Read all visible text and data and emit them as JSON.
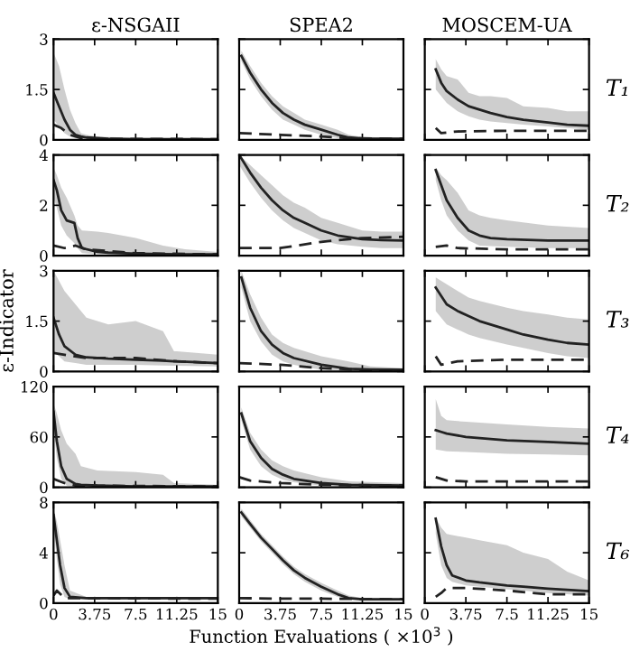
{
  "chart_data": [
    {
      "type": "line",
      "title": "ε-NSGAII",
      "xlim": [
        0,
        15
      ],
      "xticks": [
        0,
        3.75,
        7.5,
        11.25,
        15
      ],
      "ylim": [
        0,
        3
      ],
      "yticks": [
        0,
        1.5,
        3
      ],
      "tick_labels": "y",
      "series": [
        {
          "color": "#222222",
          "x": [
            0,
            0.5,
            1,
            1.5,
            2,
            2.5,
            3,
            4,
            5,
            7.5,
            11.25,
            15
          ],
          "values": [
            1.4,
            1.0,
            0.6,
            0.3,
            0.15,
            0.1,
            0.07,
            0.05,
            0.03,
            0.02,
            0.02,
            0.02
          ],
          "upper": [
            2.6,
            2.2,
            1.5,
            0.9,
            0.5,
            0.2,
            0.15,
            0.1,
            0.08,
            0.06,
            0.05,
            0.05
          ],
          "lower": [
            0.6,
            0.4,
            0.2,
            0.1,
            0.05,
            0.02,
            0.01,
            0,
            0,
            0,
            0,
            0
          ]
        },
        {
          "color": "#222222",
          "line_style": "dashed",
          "x": [
            0,
            0.7,
            1.5,
            2.5,
            5,
            15
          ],
          "values": [
            0.45,
            0.35,
            0.15,
            0.05,
            0.03,
            0.02
          ]
        }
      ]
    },
    {
      "type": "line",
      "title": "SPEA2",
      "xlim": [
        0,
        15
      ],
      "xticks": [
        0,
        3.75,
        7.5,
        11.25,
        15
      ],
      "ylim": [
        0,
        3
      ],
      "yticks": [
        0,
        1.5,
        3
      ],
      "tick_labels": false,
      "series": [
        {
          "color": "#222222",
          "x": [
            0.2,
            1,
            2,
            3,
            4,
            5,
            6,
            7.5,
            9,
            10,
            11.25,
            15
          ],
          "values": [
            2.5,
            2.0,
            1.5,
            1.1,
            0.8,
            0.6,
            0.45,
            0.3,
            0.15,
            0.07,
            0.04,
            0.03
          ],
          "upper": [
            2.65,
            2.2,
            1.7,
            1.3,
            1.0,
            0.8,
            0.6,
            0.45,
            0.3,
            0.15,
            0.08,
            0.06
          ],
          "lower": [
            2.35,
            1.8,
            1.3,
            0.9,
            0.6,
            0.45,
            0.3,
            0.15,
            0.05,
            0.02,
            0.01,
            0.01
          ]
        },
        {
          "color": "#222222",
          "line_style": "dashed",
          "x": [
            0,
            3.75,
            7.5,
            10,
            15
          ],
          "values": [
            0.2,
            0.15,
            0.1,
            0.05,
            0.03
          ]
        }
      ]
    },
    {
      "type": "line",
      "title": "MOSCEM-UA",
      "annotations": [
        "T₁"
      ],
      "xlim": [
        0,
        15
      ],
      "xticks": [
        0,
        3.75,
        7.5,
        11.25,
        15
      ],
      "ylim": [
        0,
        3
      ],
      "yticks": [
        0,
        1.5,
        3
      ],
      "tick_labels": false,
      "series": [
        {
          "color": "#222222",
          "x": [
            1,
            1.5,
            2,
            3,
            4,
            5,
            6,
            7.5,
            9,
            11.25,
            13,
            15
          ],
          "values": [
            2.1,
            1.7,
            1.45,
            1.2,
            1.0,
            0.9,
            0.8,
            0.68,
            0.6,
            0.52,
            0.45,
            0.42
          ],
          "upper": [
            2.4,
            2.1,
            1.9,
            1.8,
            1.4,
            1.3,
            1.3,
            1.25,
            1.0,
            0.95,
            0.85,
            0.85
          ],
          "lower": [
            1.5,
            1.3,
            1.1,
            0.85,
            0.7,
            0.6,
            0.55,
            0.5,
            0.45,
            0.4,
            0.35,
            0.3
          ]
        },
        {
          "color": "#222222",
          "line_style": "dashed",
          "x": [
            1,
            1.5,
            3,
            7.5,
            15
          ],
          "values": [
            0.35,
            0.2,
            0.25,
            0.27,
            0.27
          ]
        }
      ]
    },
    {
      "type": "line",
      "xlim": [
        0,
        15
      ],
      "xticks": [
        0,
        3.75,
        7.5,
        11.25,
        15
      ],
      "ylim": [
        0,
        4
      ],
      "yticks": [
        0,
        2,
        4
      ],
      "tick_labels": "y",
      "series": [
        {
          "color": "#222222",
          "x": [
            0,
            0.3,
            0.7,
            1.2,
            1.9,
            2.2,
            2.6,
            4,
            5,
            7.5,
            10,
            12,
            15
          ],
          "values": [
            3.0,
            2.6,
            1.8,
            1.4,
            1.3,
            0.7,
            0.3,
            0.15,
            0.12,
            0.08,
            0.06,
            0.05,
            0.05
          ],
          "upper": [
            3.5,
            3.2,
            2.7,
            2.3,
            1.6,
            1.2,
            1.0,
            0.95,
            0.9,
            0.7,
            0.4,
            0.25,
            0.15
          ],
          "lower": [
            2.3,
            1.9,
            1.2,
            0.8,
            0.5,
            0.3,
            0.1,
            0.05,
            0.02,
            0,
            0,
            0,
            0
          ]
        },
        {
          "color": "#222222",
          "line_style": "dashed",
          "x": [
            0,
            1,
            2,
            3,
            7.5,
            15
          ],
          "values": [
            0.4,
            0.3,
            0.4,
            0.25,
            0.1,
            0.05
          ]
        }
      ]
    },
    {
      "type": "line",
      "xlim": [
        0,
        15
      ],
      "xticks": [
        0,
        3.75,
        7.5,
        11.25,
        15
      ],
      "ylim": [
        0,
        4
      ],
      "yticks": [
        0,
        2,
        4
      ],
      "tick_labels": false,
      "series": [
        {
          "color": "#222222",
          "x": [
            0,
            1,
            2,
            3,
            4,
            5,
            6,
            7.5,
            9,
            11.25,
            13,
            15
          ],
          "values": [
            4.0,
            3.3,
            2.7,
            2.2,
            1.8,
            1.5,
            1.3,
            1.0,
            0.8,
            0.65,
            0.62,
            0.6
          ],
          "upper": [
            4.0,
            3.6,
            3.2,
            2.8,
            2.4,
            2.1,
            1.9,
            1.5,
            1.3,
            1.0,
            0.95,
            0.95
          ],
          "lower": [
            3.6,
            2.9,
            2.3,
            1.8,
            1.4,
            1.1,
            0.9,
            0.6,
            0.45,
            0.35,
            0.3,
            0.3
          ]
        },
        {
          "color": "#222222",
          "line_style": "dashed",
          "x": [
            0,
            3.75,
            7.5,
            11.25,
            15
          ],
          "values": [
            0.3,
            0.3,
            0.55,
            0.7,
            0.75
          ]
        }
      ]
    },
    {
      "type": "line",
      "annotations": [
        "T₂"
      ],
      "xlim": [
        0,
        15
      ],
      "xticks": [
        0,
        3.75,
        7.5,
        11.25,
        15
      ],
      "ylim": [
        0,
        4
      ],
      "yticks": [
        0,
        2,
        4
      ],
      "tick_labels": false,
      "series": [
        {
          "color": "#222222",
          "x": [
            1,
            1.5,
            2,
            3,
            4,
            5,
            6,
            7.5,
            11.25,
            15
          ],
          "values": [
            3.4,
            2.8,
            2.2,
            1.5,
            1.0,
            0.8,
            0.7,
            0.65,
            0.6,
            0.6
          ],
          "upper": [
            3.5,
            3.2,
            3.0,
            2.5,
            1.8,
            1.6,
            1.5,
            1.4,
            1.2,
            1.1
          ],
          "lower": [
            3.0,
            2.2,
            1.6,
            1.0,
            0.6,
            0.4,
            0.38,
            0.35,
            0.3,
            0.3
          ]
        },
        {
          "color": "#222222",
          "line_style": "dashed",
          "x": [
            1,
            2,
            3,
            7.5,
            15
          ],
          "values": [
            0.35,
            0.4,
            0.3,
            0.25,
            0.25
          ]
        }
      ]
    },
    {
      "type": "line",
      "ylabel": "ε-Indicator",
      "xlim": [
        0,
        15
      ],
      "xticks": [
        0,
        3.75,
        7.5,
        11.25,
        15
      ],
      "ylim": [
        0,
        3
      ],
      "yticks": [
        0,
        1.5,
        3
      ],
      "tick_labels": "y",
      "series": [
        {
          "color": "#222222",
          "x": [
            0,
            0.5,
            1,
            2,
            3,
            5,
            7.5,
            10,
            11,
            11.25,
            15
          ],
          "values": [
            1.6,
            1.1,
            0.75,
            0.5,
            0.42,
            0.38,
            0.35,
            0.32,
            0.3,
            0.3,
            0.25
          ],
          "upper": [
            3.0,
            2.7,
            2.4,
            2.0,
            1.6,
            1.4,
            1.5,
            1.2,
            0.6,
            0.6,
            0.5
          ],
          "lower": [
            0.6,
            0.45,
            0.3,
            0.25,
            0.2,
            0.2,
            0.2,
            0.18,
            0.17,
            0.17,
            0.15
          ]
        },
        {
          "color": "#222222",
          "line_style": "dashed",
          "x": [
            0,
            1,
            3,
            7.5,
            11.25,
            15
          ],
          "values": [
            0.55,
            0.5,
            0.4,
            0.4,
            0.3,
            0.25
          ]
        }
      ]
    },
    {
      "type": "line",
      "xlim": [
        0,
        15
      ],
      "xticks": [
        0,
        3.75,
        7.5,
        11.25,
        15
      ],
      "ylim": [
        0,
        3
      ],
      "yticks": [
        0,
        1.5,
        3
      ],
      "tick_labels": false,
      "series": [
        {
          "color": "#222222",
          "x": [
            0.2,
            1,
            2,
            3,
            4,
            5,
            7.5,
            10,
            12,
            15
          ],
          "values": [
            2.8,
            1.9,
            1.2,
            0.8,
            0.55,
            0.4,
            0.2,
            0.08,
            0.06,
            0.05
          ],
          "upper": [
            3.0,
            2.3,
            1.6,
            1.1,
            0.85,
            0.7,
            0.45,
            0.3,
            0.15,
            0.1
          ],
          "lower": [
            2.5,
            1.5,
            0.9,
            0.5,
            0.3,
            0.2,
            0.05,
            0,
            0,
            0
          ]
        },
        {
          "color": "#222222",
          "line_style": "dashed",
          "x": [
            0,
            3.75,
            7.5,
            11.25,
            15
          ],
          "values": [
            0.25,
            0.2,
            0.1,
            0.05,
            0.03
          ]
        }
      ]
    },
    {
      "type": "line",
      "annotations": [
        "T₃"
      ],
      "xlim": [
        0,
        15
      ],
      "xticks": [
        0,
        3.75,
        7.5,
        11.25,
        15
      ],
      "ylim": [
        0,
        3
      ],
      "yticks": [
        0,
        1.5,
        3
      ],
      "tick_labels": false,
      "series": [
        {
          "color": "#222222",
          "x": [
            1,
            2,
            3,
            4,
            5,
            7.5,
            9,
            11.25,
            13,
            15
          ],
          "values": [
            2.5,
            2.0,
            1.8,
            1.65,
            1.5,
            1.25,
            1.1,
            0.95,
            0.85,
            0.8
          ],
          "upper": [
            2.8,
            2.6,
            2.4,
            2.2,
            2.1,
            1.9,
            1.8,
            1.7,
            1.6,
            1.55
          ],
          "lower": [
            1.8,
            1.4,
            1.25,
            1.1,
            1.0,
            0.8,
            0.7,
            0.55,
            0.45,
            0.4
          ]
        },
        {
          "color": "#222222",
          "line_style": "dashed",
          "x": [
            1,
            1.5,
            3,
            7.5,
            15
          ],
          "values": [
            0.45,
            0.2,
            0.3,
            0.35,
            0.35
          ]
        }
      ]
    },
    {
      "type": "line",
      "xlim": [
        0,
        15
      ],
      "xticks": [
        0,
        3.75,
        7.5,
        11.25,
        15
      ],
      "ylim": [
        0,
        120
      ],
      "yticks": [
        0,
        60,
        120
      ],
      "tick_labels": "y",
      "series": [
        {
          "color": "#222222",
          "x": [
            0,
            0.3,
            0.7,
            1.2,
            2,
            2.5,
            4,
            7.5,
            10,
            11,
            15
          ],
          "values": [
            90,
            55,
            25,
            10,
            4,
            3,
            2,
            1,
            1,
            1,
            1
          ],
          "upper": [
            100,
            88,
            68,
            52,
            40,
            25,
            20,
            18,
            15,
            5,
            3
          ],
          "lower": [
            70,
            35,
            10,
            2,
            0,
            0,
            0,
            0,
            0,
            0,
            0
          ]
        },
        {
          "color": "#222222",
          "line_style": "dashed",
          "x": [
            0,
            1,
            2,
            15
          ],
          "values": [
            10,
            5,
            2,
            1
          ]
        }
      ]
    },
    {
      "type": "line",
      "xlim": [
        0,
        15
      ],
      "xticks": [
        0,
        3.75,
        7.5,
        11.25,
        15
      ],
      "ylim": [
        0,
        120
      ],
      "yticks": [
        0,
        60,
        120
      ],
      "tick_labels": false,
      "series": [
        {
          "color": "#222222",
          "x": [
            0.2,
            1,
            2,
            3,
            4,
            5,
            7.5,
            10,
            15
          ],
          "values": [
            88,
            55,
            35,
            22,
            15,
            10,
            5,
            3,
            2
          ],
          "upper": [
            95,
            65,
            45,
            32,
            25,
            20,
            12,
            7,
            5
          ],
          "lower": [
            80,
            45,
            25,
            15,
            9,
            6,
            2,
            0,
            0
          ]
        },
        {
          "color": "#222222",
          "line_style": "dashed",
          "x": [
            0,
            1,
            3.75,
            7.5,
            15
          ],
          "values": [
            12,
            8,
            5,
            3,
            2
          ]
        }
      ]
    },
    {
      "type": "line",
      "annotations": [
        "T₄"
      ],
      "xlim": [
        0,
        15
      ],
      "xticks": [
        0,
        3.75,
        7.5,
        11.25,
        15
      ],
      "ylim": [
        0,
        120
      ],
      "yticks": [
        0,
        60,
        120
      ],
      "tick_labels": false,
      "series": [
        {
          "color": "#222222",
          "x": [
            1,
            1.5,
            2,
            3.75,
            7.5,
            11.25,
            15
          ],
          "values": [
            68,
            66,
            64,
            60,
            56,
            54,
            52
          ],
          "upper": [
            105,
            85,
            80,
            78,
            75,
            72,
            70
          ],
          "lower": [
            45,
            44,
            43,
            42,
            40,
            39,
            38
          ]
        },
        {
          "color": "#222222",
          "line_style": "dashed",
          "x": [
            1,
            2,
            3.75,
            15
          ],
          "values": [
            12,
            8,
            7,
            7
          ]
        }
      ]
    },
    {
      "type": "line",
      "xlim": [
        0,
        15
      ],
      "xticks": [
        0,
        3.75,
        7.5,
        11.25,
        15
      ],
      "ylim": [
        0,
        8
      ],
      "yticks": [
        0,
        4,
        8
      ],
      "series": [
        {
          "color": "#222222",
          "x": [
            0,
            0.3,
            0.6,
            1,
            1.5,
            3,
            15
          ],
          "values": [
            7.0,
            5.0,
            3.0,
            1.2,
            0.5,
            0.4,
            0.4
          ],
          "upper": [
            7.5,
            6.5,
            5.0,
            3.0,
            1.0,
            0.5,
            0.5
          ],
          "lower": [
            6.0,
            3.5,
            1.5,
            0.5,
            0.3,
            0.3,
            0.3
          ]
        },
        {
          "color": "#222222",
          "line_style": "dashed",
          "x": [
            0,
            0.3,
            1,
            15
          ],
          "values": [
            0.6,
            1.0,
            0.4,
            0.35
          ]
        }
      ]
    },
    {
      "type": "line",
      "xlabel": "Function Evaluations ( ×10$^{3}$ )",
      "xlim": [
        0,
        15
      ],
      "xticks": [
        0,
        3.75,
        7.5,
        11.25,
        15
      ],
      "ylim": [
        0,
        8
      ],
      "yticks": [
        0,
        4,
        8
      ],
      "tick_labels": "x",
      "series": [
        {
          "color": "#222222",
          "x": [
            0.2,
            1,
            2,
            3,
            4,
            5,
            6,
            7.5,
            9,
            10,
            11.25,
            15
          ],
          "values": [
            7.2,
            6.3,
            5.2,
            4.3,
            3.4,
            2.6,
            2.0,
            1.3,
            0.7,
            0.4,
            0.3,
            0.3
          ],
          "upper": [
            7.5,
            6.6,
            5.5,
            4.6,
            3.7,
            2.9,
            2.3,
            1.6,
            1.0,
            0.6,
            0.4,
            0.4
          ],
          "lower": [
            6.9,
            6.0,
            4.9,
            4.0,
            3.1,
            2.3,
            1.7,
            1.0,
            0.5,
            0.3,
            0.2,
            0.2
          ]
        },
        {
          "color": "#222222",
          "line_style": "dashed",
          "x": [
            0,
            3.75,
            7.5,
            15
          ],
          "values": [
            0.4,
            0.35,
            0.35,
            0.3
          ]
        }
      ]
    },
    {
      "type": "line",
      "annotations": [
        "T₆"
      ],
      "xlim": [
        0,
        15
      ],
      "xticks": [
        0,
        3.75,
        7.5,
        11.25,
        15
      ],
      "ylim": [
        0,
        8
      ],
      "yticks": [
        0,
        4,
        8
      ],
      "tick_labels": "x",
      "series": [
        {
          "color": "#222222",
          "x": [
            1,
            1.5,
            2,
            2.5,
            3.75,
            5,
            7.5,
            9,
            11.25,
            13,
            15
          ],
          "values": [
            6.7,
            4.5,
            3.0,
            2.2,
            1.8,
            1.65,
            1.4,
            1.3,
            1.15,
            1.05,
            0.95
          ],
          "upper": [
            6.8,
            6.0,
            5.5,
            5.4,
            5.2,
            5.0,
            4.6,
            4.0,
            3.5,
            2.5,
            1.8
          ],
          "lower": [
            5.5,
            3.0,
            2.0,
            1.7,
            1.4,
            1.3,
            1.1,
            1.0,
            0.8,
            0.7,
            0.6
          ]
        },
        {
          "color": "#222222",
          "line_style": "dashed",
          "x": [
            1,
            1.5,
            2,
            3.75,
            7.5,
            11.25,
            15
          ],
          "values": [
            0.5,
            0.8,
            1.2,
            1.2,
            1.0,
            0.7,
            0.7
          ]
        }
      ]
    }
  ]
}
